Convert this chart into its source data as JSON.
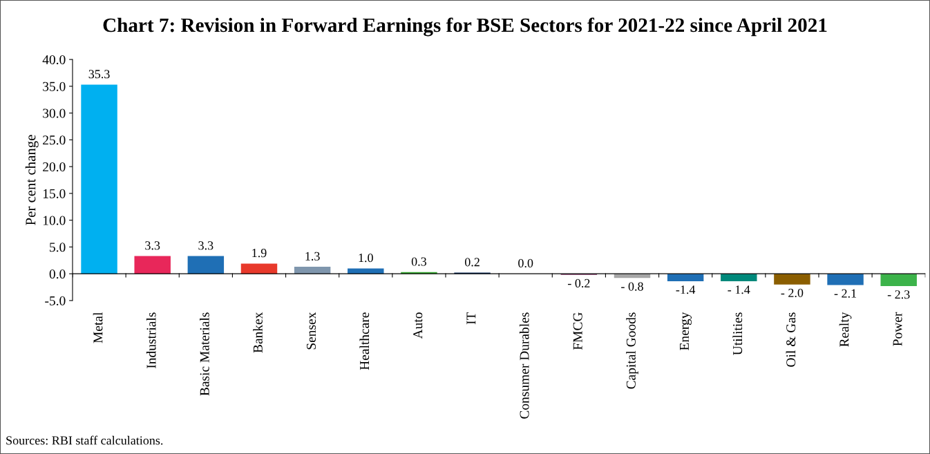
{
  "chart_data": {
    "type": "bar",
    "title": "Chart 7: Revision in Forward Earnings for BSE Sectors for 2021-22 since April 2021",
    "ylabel": "Per cent change",
    "categories": [
      "Metal",
      "Industrials",
      "Basic Materials",
      "Bankex",
      "Sensex",
      "Healthcare",
      "Auto",
      "IT",
      "Consumer Durables",
      "FMCG",
      "Capital Goods",
      "Energy",
      "Utilities",
      "Oil & Gas",
      "Realty",
      "Power"
    ],
    "values": [
      35.3,
      3.3,
      3.3,
      1.9,
      1.3,
      1.0,
      0.3,
      0.2,
      0.0,
      -0.2,
      -0.8,
      -1.4,
      -1.4,
      -2.0,
      -2.1,
      -2.3
    ],
    "value_labels": [
      "35.3",
      "3.3",
      "3.3",
      "1.9",
      "1.3",
      "1.0",
      "0.3",
      "0.2",
      "0.0",
      "- 0.2",
      "- 0.8",
      "-1.4",
      "- 1.4",
      "- 2.0",
      "- 2.1",
      "- 2.3"
    ],
    "colors": [
      "#00b0f0",
      "#e8275a",
      "#1f6fb5",
      "#e8392b",
      "#7f96ad",
      "#1f6fb5",
      "#3aaa35",
      "#0d2d5e",
      "#d9b38c",
      "#7b2d5e",
      "#a6a6a6",
      "#1f6fb5",
      "#00897b",
      "#8b5e00",
      "#1f6fb5",
      "#3cb34a"
    ],
    "ylim": [
      -5,
      40
    ],
    "yticks": [
      {
        "value": -5,
        "label": "-5.0"
      },
      {
        "value": 0,
        "label": "0.0"
      },
      {
        "value": 5,
        "label": "5.0"
      },
      {
        "value": 10,
        "label": "10.0"
      },
      {
        "value": 15,
        "label": "15.0"
      },
      {
        "value": 20,
        "label": "20.0"
      },
      {
        "value": 25,
        "label": "25.0"
      },
      {
        "value": 30,
        "label": "30.0"
      },
      {
        "value": 35,
        "label": "35.0"
      },
      {
        "value": 40,
        "label": "40.0"
      }
    ],
    "annotations": [
      "Sources: RBI staff calculations."
    ]
  }
}
